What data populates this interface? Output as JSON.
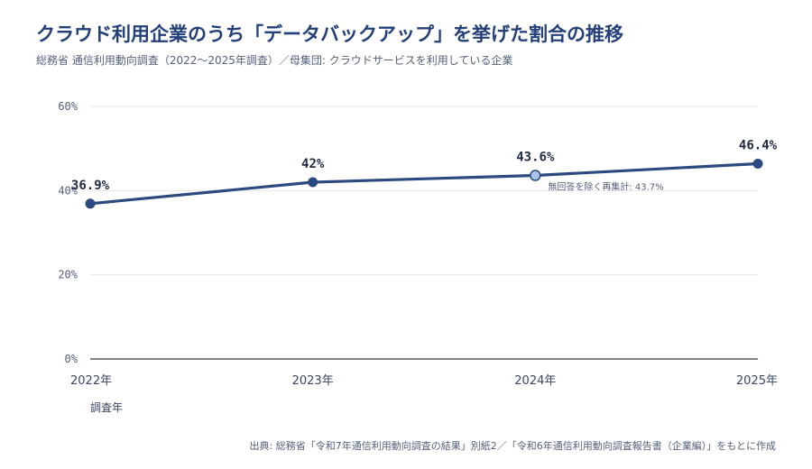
{
  "chart_data": {
    "type": "line",
    "title": "クラウド利用企業のうち「データバックアップ」を挙げた割合の推移",
    "subtitle": "総務省 通信利用動向調査（2022〜2025年調査）／母集団: クラウドサービスを利用している企業",
    "xlabel": "調査年",
    "ylabel": "",
    "categories": [
      "2022年",
      "2023年",
      "2024年",
      "2025年"
    ],
    "values": [
      36.9,
      42,
      43.6,
      46.4
    ],
    "value_labels": [
      "36.9%",
      "42%",
      "43.6%",
      "46.4%"
    ],
    "yticks": [
      0,
      20,
      40,
      60
    ],
    "ytick_labels": [
      "0%",
      "20%",
      "40%",
      "60%"
    ],
    "ylim": [
      0,
      60
    ],
    "grid": true,
    "highlight_index": 2,
    "annotation": "無回答を除く再集計: 43.7%",
    "colors": {
      "line": "#2c4a80",
      "point": "#2c4a80",
      "highlight_fill": "#a9c4e8",
      "grid": "#e6e8ee",
      "axis": "#555b66"
    },
    "source": "出典: 総務省「令和7年通信利用動向調査の結果」別紙2／「令和6年通信利用動向調査報告書（企業編）」をもとに作成"
  }
}
